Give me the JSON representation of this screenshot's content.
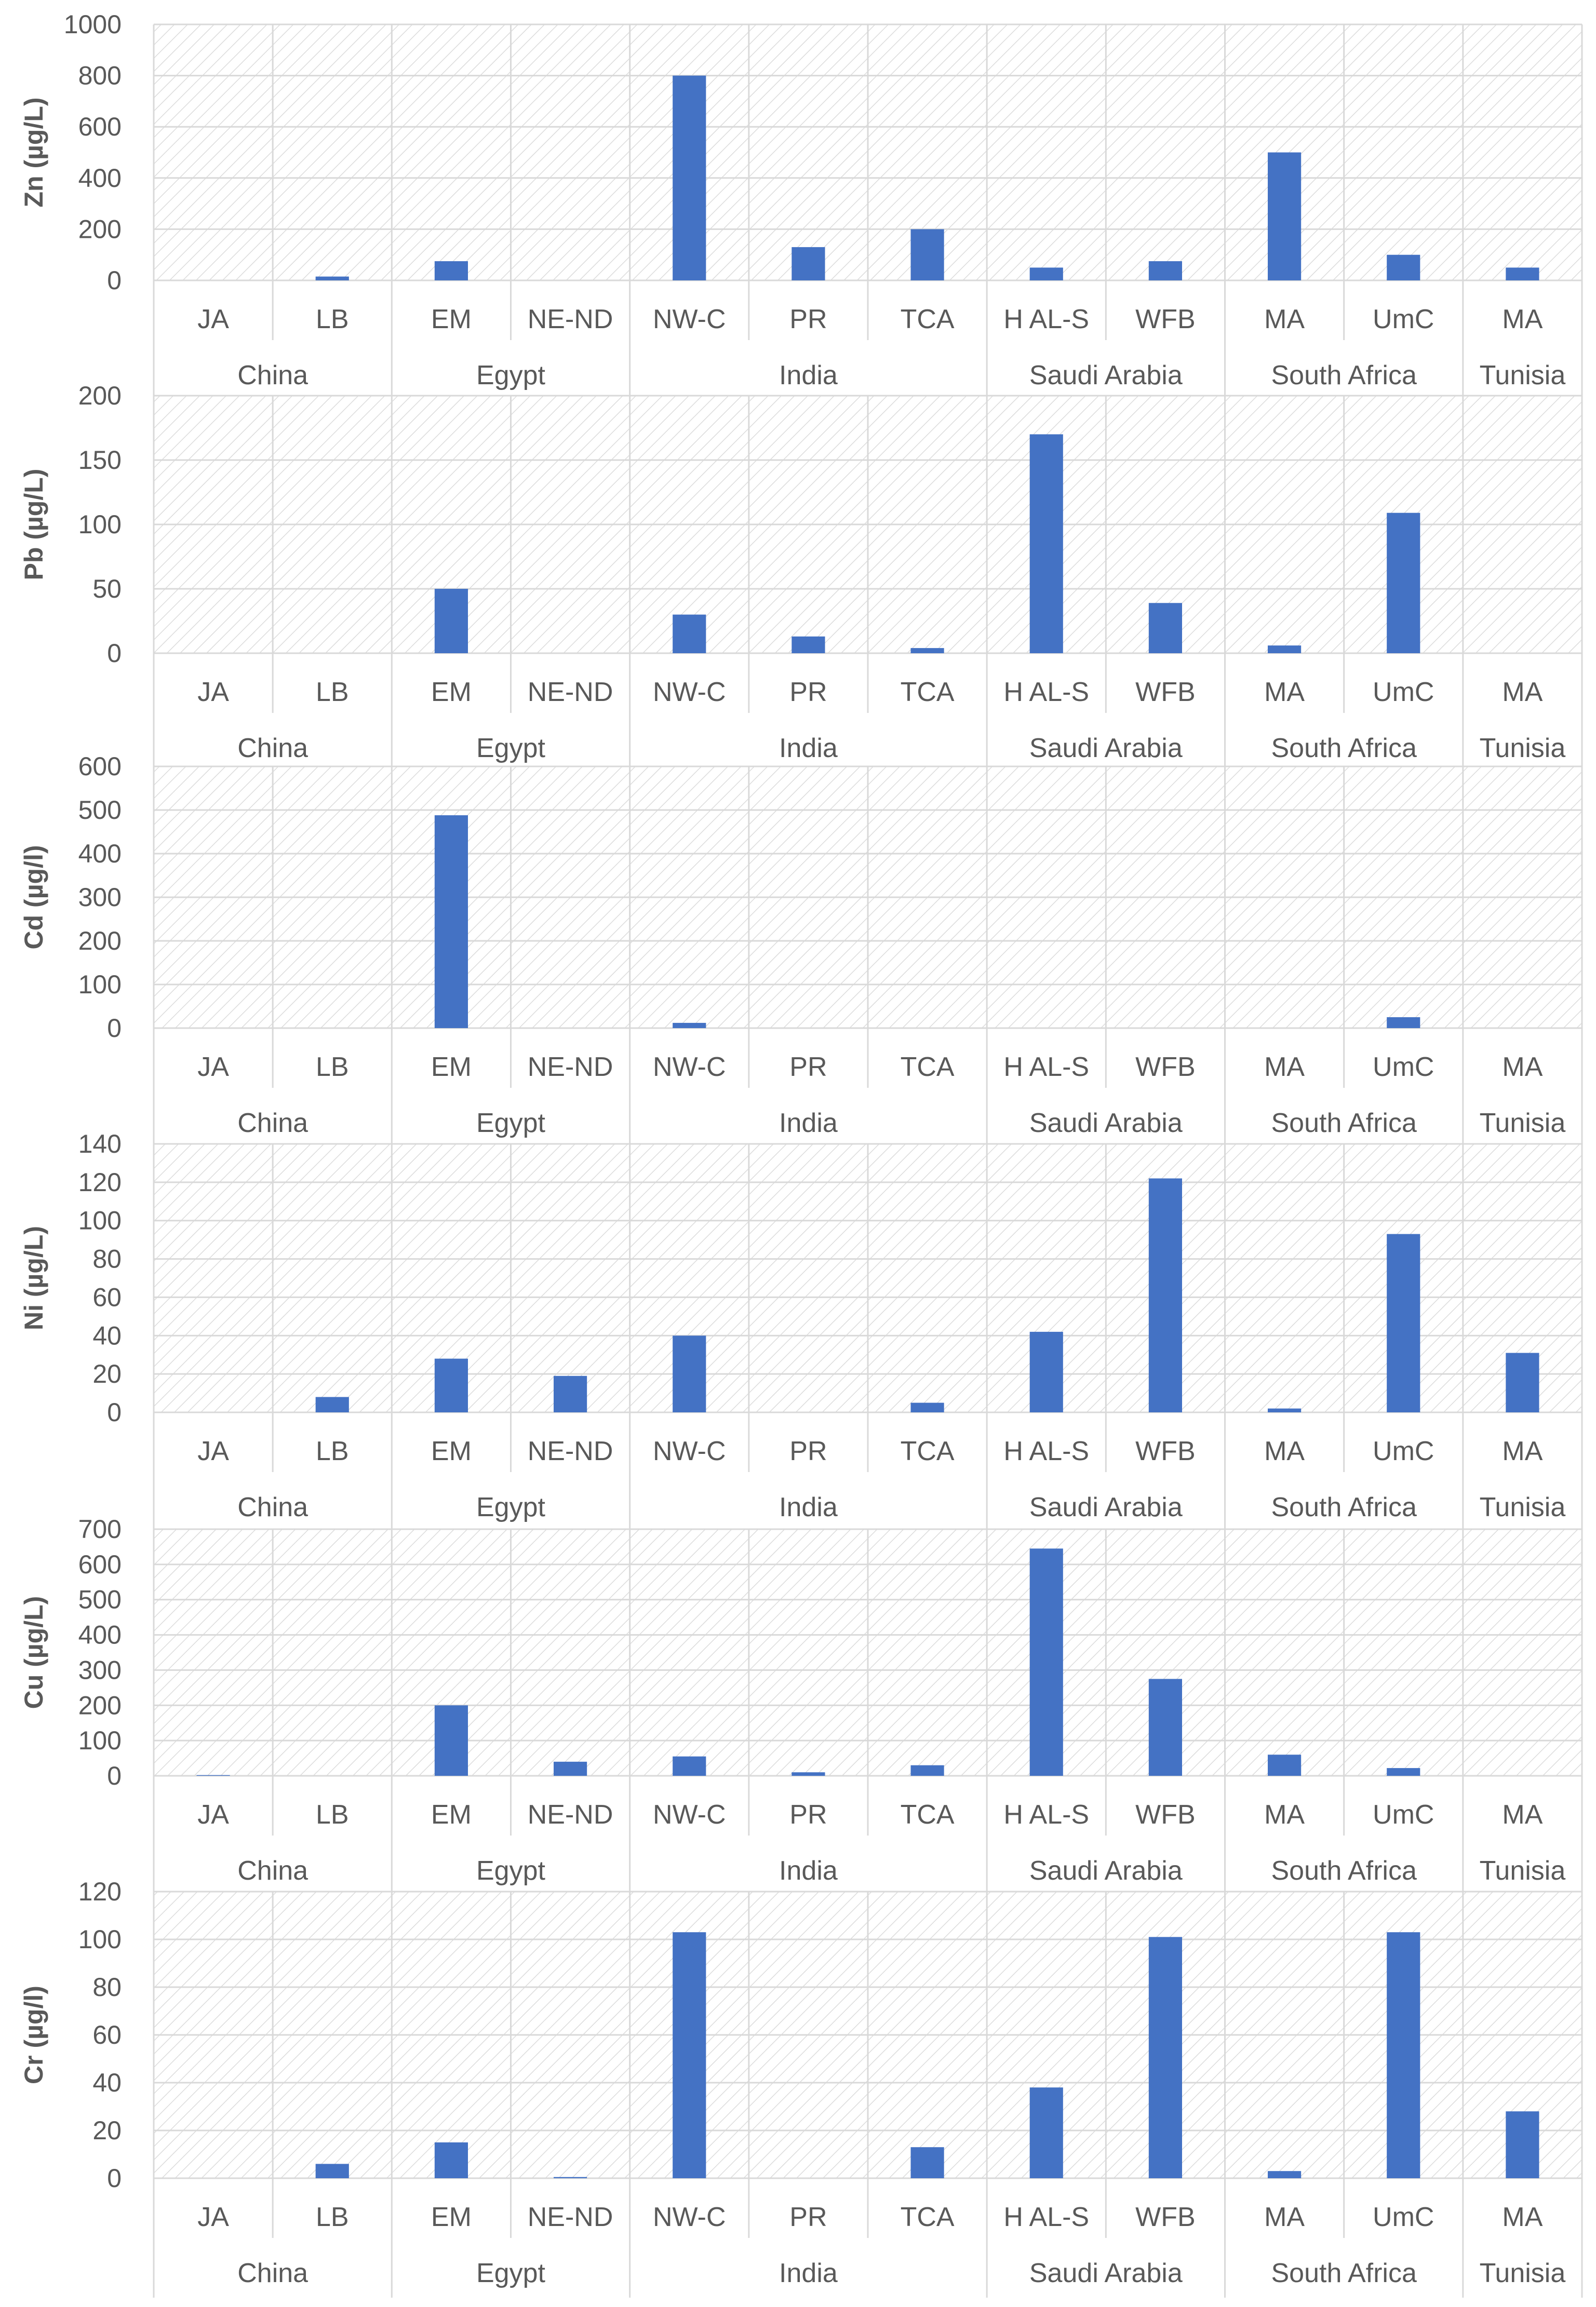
{
  "chart_data": {
    "type": "bar",
    "groups": [
      {
        "label": "China",
        "categories": [
          "JA",
          "LB"
        ]
      },
      {
        "label": "Egypt",
        "categories": [
          "EM",
          "NE-ND"
        ]
      },
      {
        "label": "India",
        "categories": [
          "NW-C",
          "PR",
          "TCA"
        ]
      },
      {
        "label": "Saudi Arabia",
        "categories": [
          "H AL-S",
          "WFB"
        ]
      },
      {
        "label": "South Africa",
        "categories": [
          "MA",
          "UmC"
        ]
      },
      {
        "label": "Tunisia",
        "categories": [
          "MA"
        ]
      }
    ],
    "panels": [
      {
        "ylabel": "Zn (µg/L)",
        "ylim": [
          0,
          1000
        ],
        "ticks": [
          "0",
          "200",
          "400",
          "600",
          "800",
          "1000"
        ],
        "values": [
          0,
          15,
          75,
          0,
          800,
          130,
          200,
          50,
          75,
          500,
          100,
          50
        ]
      },
      {
        "ylabel": "Pb (µg/L)",
        "ylim": [
          0,
          200
        ],
        "ticks": [
          "0",
          "50",
          "100",
          "150",
          "200"
        ],
        "values": [
          0,
          0,
          50,
          0,
          30,
          13,
          4,
          170,
          39,
          6,
          109,
          0
        ]
      },
      {
        "ylabel": "Cd (µg/l)",
        "ylim": [
          0,
          600
        ],
        "ticks": [
          "0",
          "100",
          "200",
          "300",
          "400",
          "500",
          "600"
        ],
        "values": [
          0,
          0,
          488,
          0,
          12,
          0,
          0,
          0,
          0,
          0,
          25,
          0
        ]
      },
      {
        "ylabel": "Ni (µg/L)",
        "ylim": [
          0,
          140
        ],
        "ticks": [
          "0",
          "20",
          "40",
          "60",
          "80",
          "100",
          "120",
          "140"
        ],
        "values": [
          0,
          8,
          28,
          19,
          40,
          0,
          5,
          42,
          122,
          2,
          93,
          31
        ]
      },
      {
        "ylabel": "Cu (µg/L)",
        "ylim": [
          0,
          700
        ],
        "ticks": [
          "0",
          "100",
          "200",
          "300",
          "400",
          "500",
          "600",
          "700"
        ],
        "values": [
          2,
          0,
          200,
          40,
          55,
          10,
          30,
          645,
          275,
          60,
          22,
          0
        ]
      },
      {
        "ylabel": "Cr (µg/l)",
        "ylim": [
          0,
          120
        ],
        "ticks": [
          "0",
          "20",
          "40",
          "60",
          "80",
          "100",
          "120"
        ],
        "values": [
          0,
          6,
          15,
          0.5,
          103,
          0,
          13,
          38,
          101,
          3,
          103,
          28
        ]
      }
    ]
  }
}
